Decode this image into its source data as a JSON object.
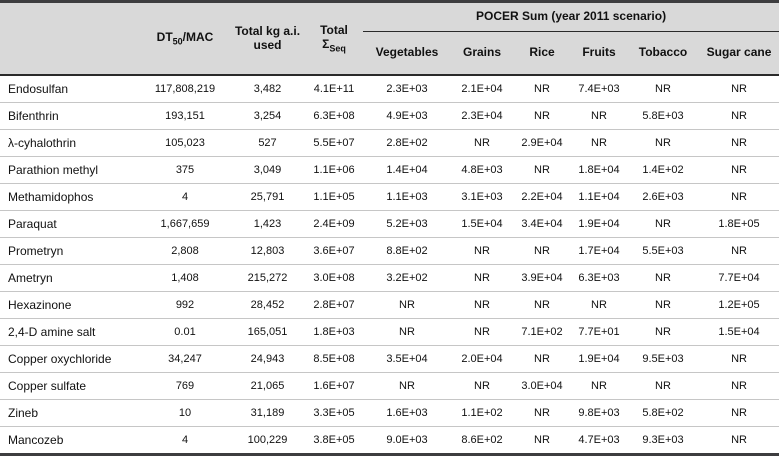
{
  "table": {
    "headers": {
      "dt50_prefix": "DT",
      "dt50_sub": "50",
      "dt50_suffix": "/MAC",
      "total_kg": "Total kg a.i. used",
      "total_seq_prefix": "Total Σ",
      "total_seq_sub": "Seq",
      "pocer_group": "POCER Sum (year 2011 scenario)",
      "pocer_cols": [
        "Vegetables",
        "Grains",
        "Rice",
        "Fruits",
        "Tobacco",
        "Sugar cane"
      ]
    },
    "colors": {
      "header_bg": "#d9d9d9",
      "rule_dark": "#3d3d3f",
      "rule_light": "#c6c6c6"
    },
    "rows": [
      {
        "name": "Endosulfan",
        "values": [
          "117,808,219",
          "3,482",
          "4.1E+11",
          "2.3E+03",
          "2.1E+04",
          "NR",
          "7.4E+03",
          "NR",
          "NR"
        ]
      },
      {
        "name": "Bifenthrin",
        "values": [
          "193,151",
          "3,254",
          "6.3E+08",
          "4.9E+03",
          "2.3E+04",
          "NR",
          "NR",
          "5.8E+03",
          "NR"
        ]
      },
      {
        "name": "λ-cyhalothrin",
        "values": [
          "105,023",
          "527",
          "5.5E+07",
          "2.8E+02",
          "NR",
          "2.9E+04",
          "NR",
          "NR",
          "NR"
        ]
      },
      {
        "name": "Parathion methyl",
        "values": [
          "375",
          "3,049",
          "1.1E+06",
          "1.4E+04",
          "4.8E+03",
          "NR",
          "1.8E+04",
          "1.4E+02",
          "NR"
        ]
      },
      {
        "name": "Methamidophos",
        "values": [
          "4",
          "25,791",
          "1.1E+05",
          "1.1E+03",
          "3.1E+03",
          "2.2E+04",
          "1.1E+04",
          "2.6E+03",
          "NR"
        ]
      },
      {
        "name": "Paraquat",
        "values": [
          "1,667,659",
          "1,423",
          "2.4E+09",
          "5.2E+03",
          "1.5E+04",
          "3.4E+04",
          "1.9E+04",
          "NR",
          "1.8E+05"
        ]
      },
      {
        "name": "Prometryn",
        "values": [
          "2,808",
          "12,803",
          "3.6E+07",
          "8.8E+02",
          "NR",
          "NR",
          "1.7E+04",
          "5.5E+03",
          "NR"
        ]
      },
      {
        "name": "Ametryn",
        "values": [
          "1,408",
          "215,272",
          "3.0E+08",
          "3.2E+02",
          "NR",
          "3.9E+04",
          "6.3E+03",
          "NR",
          "7.7E+04"
        ]
      },
      {
        "name": "Hexazinone",
        "values": [
          "992",
          "28,452",
          "2.8E+07",
          "NR",
          "NR",
          "NR",
          "NR",
          "NR",
          "1.2E+05"
        ]
      },
      {
        "name": "2,4-D amine salt",
        "values": [
          "0.01",
          "165,051",
          "1.8E+03",
          "NR",
          "NR",
          "7.1E+02",
          "7.7E+01",
          "NR",
          "1.5E+04"
        ]
      },
      {
        "name": "Copper oxychloride",
        "values": [
          "34,247",
          "24,943",
          "8.5E+08",
          "3.5E+04",
          "2.0E+04",
          "NR",
          "1.9E+04",
          "9.5E+03",
          "NR"
        ]
      },
      {
        "name": "Copper sulfate",
        "values": [
          "769",
          "21,065",
          "1.6E+07",
          "NR",
          "NR",
          "3.0E+04",
          "NR",
          "NR",
          "NR"
        ]
      },
      {
        "name": "Zineb",
        "values": [
          "10",
          "31,189",
          "3.3E+05",
          "1.6E+03",
          "1.1E+02",
          "NR",
          "9.8E+03",
          "5.8E+02",
          "NR"
        ]
      },
      {
        "name": "Mancozeb",
        "values": [
          "4",
          "100,229",
          "3.8E+05",
          "9.0E+03",
          "8.6E+02",
          "NR",
          "4.7E+03",
          "9.3E+03",
          "NR"
        ]
      }
    ]
  }
}
